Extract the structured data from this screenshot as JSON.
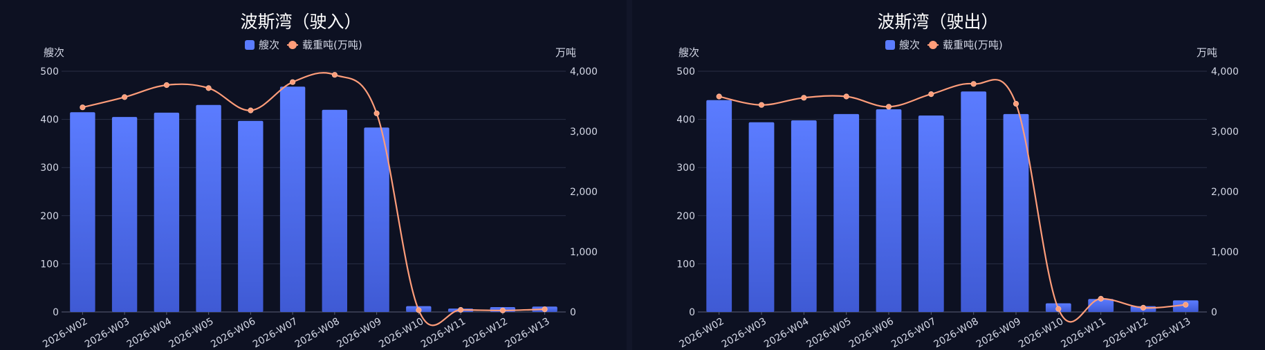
{
  "colors": {
    "bar_top": "#5b7cff",
    "bar_bottom": "#3f5ad4",
    "line": "#ff9d7a",
    "grid": "#2a3046",
    "axis": "#5a6178"
  },
  "chart_data": [
    {
      "type": "bar",
      "title": "波斯湾（驶入）",
      "ylabel_left": "艘次",
      "ylabel_right": "万吨",
      "categories": [
        "2026-W02",
        "2026-W03",
        "2026-W04",
        "2026-W05",
        "2026-W06",
        "2026-W07",
        "2026-W08",
        "2026-W09",
        "2026-W10",
        "2026-W11",
        "2026-W12",
        "2026-W13"
      ],
      "series": [
        {
          "name": "艘次",
          "type": "bar",
          "axis": "left",
          "values": [
            415,
            405,
            414,
            430,
            397,
            468,
            420,
            383,
            12,
            7,
            10,
            11
          ]
        },
        {
          "name": "载重吨(万吨)",
          "type": "line",
          "axis": "right",
          "values": [
            3400,
            3570,
            3770,
            3720,
            3350,
            3820,
            3940,
            3300,
            30,
            35,
            25,
            45
          ]
        }
      ],
      "ylim_left": [
        0,
        500
      ],
      "yticks_left": [
        "0",
        "100",
        "200",
        "300",
        "400",
        "500"
      ],
      "ylim_right": [
        0,
        4000
      ],
      "yticks_right": [
        "0",
        "1,000",
        "2,000",
        "3,000",
        "4,000"
      ],
      "legend": "top-center",
      "grid": true
    },
    {
      "type": "bar",
      "title": "波斯湾（驶出）",
      "ylabel_left": "艘次",
      "ylabel_right": "万吨",
      "categories": [
        "2026-W02",
        "2026-W03",
        "2026-W04",
        "2026-W05",
        "2026-W06",
        "2026-W07",
        "2026-W08",
        "2026-W09",
        "2026-W10",
        "2026-W11",
        "2026-W12",
        "2026-W13"
      ],
      "series": [
        {
          "name": "艘次",
          "type": "bar",
          "axis": "left",
          "values": [
            440,
            394,
            398,
            411,
            421,
            408,
            458,
            411,
            18,
            27,
            12,
            24
          ]
        },
        {
          "name": "载重吨(万吨)",
          "type": "line",
          "axis": "right",
          "values": [
            3580,
            3440,
            3560,
            3580,
            3410,
            3620,
            3790,
            3460,
            50,
            220,
            70,
            120
          ]
        }
      ],
      "ylim_left": [
        0,
        500
      ],
      "yticks_left": [
        "0",
        "100",
        "200",
        "300",
        "400",
        "500"
      ],
      "ylim_right": [
        0,
        4000
      ],
      "yticks_right": [
        "0",
        "1,000",
        "2,000",
        "3,000",
        "4,000"
      ],
      "legend": "top-center",
      "grid": true
    }
  ]
}
